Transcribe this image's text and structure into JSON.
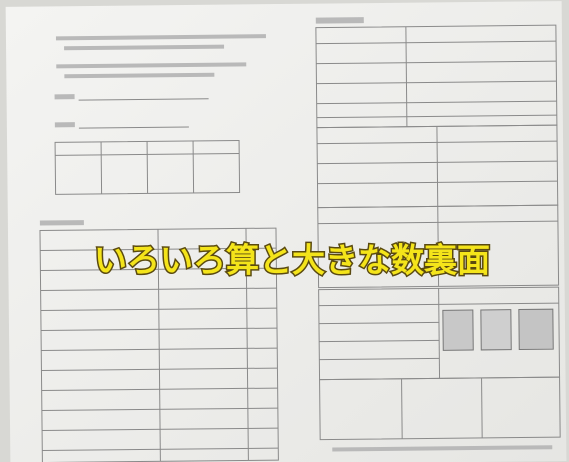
{
  "caption": "いろいろ算と大きな数裏面"
}
